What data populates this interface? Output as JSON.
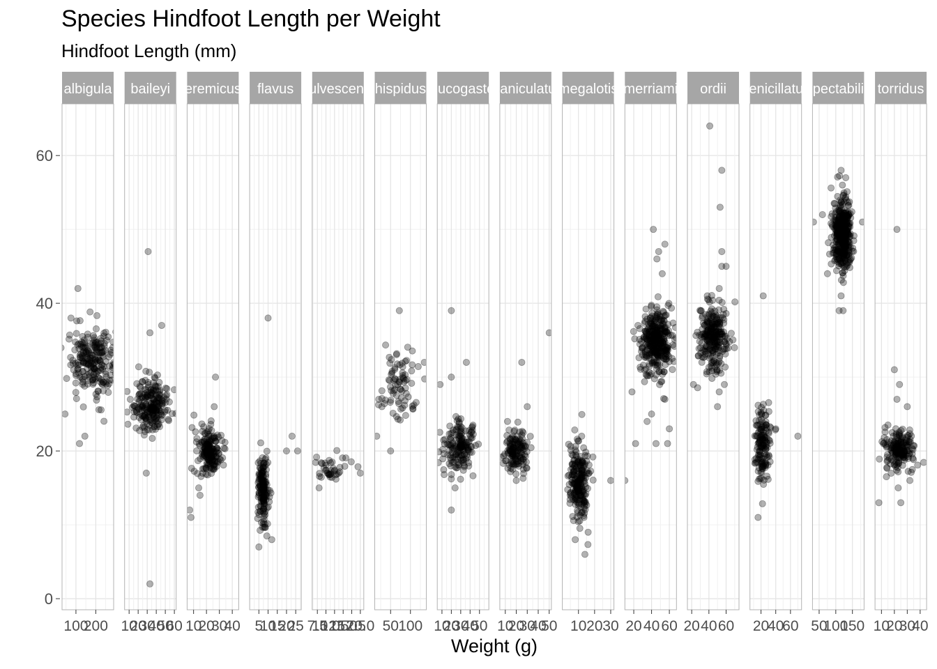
{
  "chart_data": {
    "type": "scatter",
    "title": "Species Hindfoot Length per Weight",
    "subtitle": "Hindfoot Length (mm)",
    "xlabel": "Weight (g)",
    "ylabel": "Hindfoot Length (mm)",
    "ylim": [
      -1.5,
      67
    ],
    "y_ticks": [
      0,
      20,
      40,
      60
    ],
    "facets": [
      {
        "label": "albigula",
        "xlim": [
          30,
          290
        ],
        "x_ticks": [
          100,
          200
        ],
        "x_tick_labels": [
          "100",
          "200"
        ],
        "clusters": [
          {
            "x": 185,
            "y": 32,
            "sx": 60,
            "sy": 2.2,
            "n": 230
          }
        ],
        "outliers": [
          [
            110,
            42
          ],
          [
            75,
            38
          ],
          [
            45,
            25
          ],
          [
            118,
            21
          ],
          [
            145,
            22
          ],
          [
            255,
            35
          ]
        ]
      },
      {
        "label": "baileyi",
        "xlim": [
          5,
          62
        ],
        "x_ticks": [
          10,
          20,
          30,
          40,
          50,
          60
        ],
        "x_tick_labels": [
          "10",
          "20",
          "30",
          "40",
          "50",
          "60"
        ],
        "clusters": [
          {
            "x": 35,
            "y": 26,
            "sx": 9,
            "sy": 1.7,
            "n": 230
          }
        ],
        "outliers": [
          [
            31,
            47
          ],
          [
            33,
            36
          ],
          [
            46,
            37
          ],
          [
            29,
            17
          ],
          [
            33,
            2
          ]
        ]
      },
      {
        "label": "eremicus",
        "xlim": [
          5,
          45
        ],
        "x_ticks": [
          10,
          20,
          30,
          40
        ],
        "x_tick_labels": [
          "10",
          "20",
          "30",
          "40"
        ],
        "clusters": [
          {
            "x": 22,
            "y": 20,
            "sx": 5,
            "sy": 1.5,
            "n": 180
          }
        ],
        "outliers": [
          [
            27,
            30
          ],
          [
            26,
            26
          ],
          [
            7,
            12
          ],
          [
            8,
            11
          ],
          [
            14,
            15
          ],
          [
            15,
            14
          ]
        ]
      },
      {
        "label": "flavus",
        "xlim": [
          0,
          28
        ],
        "x_ticks": [
          5,
          10,
          15,
          20,
          25
        ],
        "x_tick_labels": [
          "5",
          "10",
          "15",
          "20",
          "25"
        ],
        "clusters": [
          {
            "x": 7.5,
            "y": 15,
            "sx": 1.6,
            "sy": 2.6,
            "n": 160
          }
        ],
        "outliers": [
          [
            10,
            38
          ],
          [
            23,
            22
          ],
          [
            26,
            20
          ],
          [
            20,
            20
          ],
          [
            5,
            7
          ],
          [
            12,
            8
          ]
        ]
      },
      {
        "label": "fulvescens",
        "xlim": [
          6,
          21
        ],
        "x_ticks": [
          7.5,
          10,
          12.5,
          15,
          17.5,
          20
        ],
        "x_tick_labels": [
          "7.5",
          "10.0",
          "12.5",
          "15.0",
          "17.5",
          "20.0"
        ],
        "clusters": [
          {
            "x": 12,
            "y": 17.5,
            "sx": 3,
            "sy": 1,
            "n": 40
          }
        ],
        "outliers": [
          [
            8,
            15
          ],
          [
            20,
            17
          ]
        ]
      },
      {
        "label": "hispidus",
        "xlim": [
          10,
          140
        ],
        "x_ticks": [
          50,
          100
        ],
        "x_tick_labels": [
          "50",
          "100"
        ],
        "clusters": [
          {
            "x": 70,
            "y": 29,
            "sx": 22,
            "sy": 2.5,
            "n": 80
          }
        ],
        "outliers": [
          [
            72,
            39
          ],
          [
            15,
            22
          ],
          [
            50,
            20
          ],
          [
            135,
            32
          ]
        ]
      },
      {
        "label": "leucogaster",
        "xlim": [
          5,
          60
        ],
        "x_ticks": [
          10,
          20,
          30,
          40,
          50
        ],
        "x_tick_labels": [
          "10",
          "20",
          "30",
          "40",
          "50"
        ],
        "clusters": [
          {
            "x": 28,
            "y": 20.5,
            "sx": 8,
            "sy": 1.6,
            "n": 170
          }
        ],
        "outliers": [
          [
            20,
            39
          ],
          [
            20,
            30
          ],
          [
            36,
            32
          ],
          [
            8,
            29
          ],
          [
            20,
            12
          ],
          [
            24,
            15
          ]
        ]
      },
      {
        "label": "maniculatus",
        "xlim": [
          5,
          52
        ],
        "x_ticks": [
          10,
          20,
          30,
          40,
          50
        ],
        "x_tick_labels": [
          "10",
          "20",
          "30",
          "40",
          "50"
        ],
        "clusters": [
          {
            "x": 20,
            "y": 20,
            "sx": 5,
            "sy": 1.5,
            "n": 140
          }
        ],
        "outliers": [
          [
            25,
            32
          ],
          [
            30,
            26
          ],
          [
            50,
            36
          ],
          [
            12,
            24
          ],
          [
            20,
            16
          ]
        ]
      },
      {
        "label": "megalotis",
        "xlim": [
          0,
          32
        ],
        "x_ticks": [
          10,
          20,
          30
        ],
        "x_tick_labels": [
          "10",
          "20",
          "30"
        ],
        "clusters": [
          {
            "x": 10,
            "y": 16,
            "sx": 3,
            "sy": 2.6,
            "n": 220
          }
        ],
        "outliers": [
          [
            12,
            22
          ],
          [
            8,
            8
          ],
          [
            14,
            6
          ],
          [
            16,
            9
          ],
          [
            30,
            16
          ]
        ]
      },
      {
        "label": "merriami",
        "xlim": [
          10,
          68
        ],
        "x_ticks": [
          20,
          40,
          60
        ],
        "x_tick_labels": [
          "20",
          "40",
          "60"
        ],
        "clusters": [
          {
            "x": 45,
            "y": 35,
            "sx": 9,
            "sy": 2.3,
            "n": 350
          }
        ],
        "outliers": [
          [
            42,
            50
          ],
          [
            48,
            47
          ],
          [
            55,
            48
          ],
          [
            52,
            44
          ],
          [
            46,
            46
          ],
          [
            18,
            28
          ],
          [
            22,
            21
          ],
          [
            45,
            21
          ],
          [
            58,
            21
          ],
          [
            40,
            25
          ],
          [
            35,
            24
          ],
          [
            55,
            27
          ],
          [
            10,
            16
          ],
          [
            60,
            23
          ]
        ]
      },
      {
        "label": "ordii",
        "xlim": [
          15,
          75
        ],
        "x_ticks": [
          20,
          40,
          60
        ],
        "x_tick_labels": [
          "20",
          "40",
          "60"
        ],
        "clusters": [
          {
            "x": 45,
            "y": 35.5,
            "sx": 8,
            "sy": 2.3,
            "n": 260
          }
        ],
        "outliers": [
          [
            41,
            64
          ],
          [
            55,
            58
          ],
          [
            53,
            53
          ],
          [
            55,
            47
          ],
          [
            55,
            45
          ],
          [
            60,
            45
          ],
          [
            52,
            42
          ],
          [
            52,
            28
          ],
          [
            50,
            26
          ],
          [
            58,
            29
          ],
          [
            22,
            29
          ]
        ]
      },
      {
        "label": "penicillatus",
        "xlim": [
          5,
          75
        ],
        "x_ticks": [
          20,
          40,
          60
        ],
        "x_tick_labels": [
          "20",
          "40",
          "60"
        ],
        "clusters": [
          {
            "x": 22,
            "y": 21.5,
            "sx": 5,
            "sy": 3,
            "n": 150
          }
        ],
        "outliers": [
          [
            23,
            41
          ],
          [
            16,
            11
          ],
          [
            40,
            23
          ],
          [
            70,
            22
          ]
        ]
      },
      {
        "label": "spectabilis",
        "xlim": [
          30,
          185
        ],
        "x_ticks": [
          50,
          100,
          150
        ],
        "x_tick_labels": [
          "50",
          "100",
          "150"
        ],
        "clusters": [
          {
            "x": 120,
            "y": 49.5,
            "sx": 14,
            "sy": 2.3,
            "n": 400
          }
        ],
        "outliers": [
          [
            116,
            58
          ],
          [
            130,
            57
          ],
          [
            120,
            56
          ],
          [
            33,
            51
          ],
          [
            180,
            51
          ],
          [
            60,
            52
          ],
          [
            116,
            41
          ],
          [
            110,
            39
          ],
          [
            122,
            39
          ],
          [
            75,
            44
          ]
        ]
      },
      {
        "label": "torridus",
        "xlim": [
          5,
          45
        ],
        "x_ticks": [
          10,
          20,
          30,
          40
        ],
        "x_tick_labels": [
          "10",
          "20",
          "30",
          "40"
        ],
        "clusters": [
          {
            "x": 24,
            "y": 20,
            "sx": 6,
            "sy": 1.5,
            "n": 180
          }
        ],
        "outliers": [
          [
            22,
            50
          ],
          [
            20,
            31
          ],
          [
            24,
            29
          ],
          [
            22,
            27
          ],
          [
            30,
            26
          ],
          [
            8,
            13
          ],
          [
            25,
            13
          ],
          [
            23,
            15
          ],
          [
            32,
            16
          ]
        ]
      }
    ]
  }
}
